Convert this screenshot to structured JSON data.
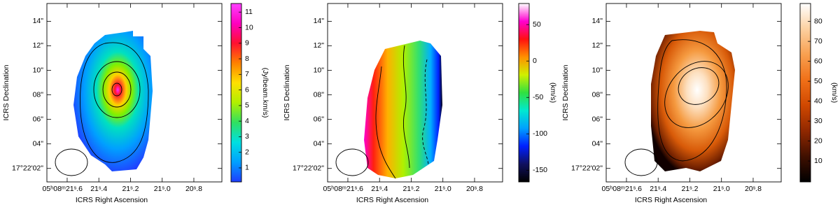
{
  "chart_data": [
    {
      "type": "image",
      "xlabel": "ICRS Right Ascension",
      "ylabel": "ICRS Declination",
      "xlim": [
        21.728,
        20.623
      ],
      "xticks": [
        {
          "value": 21.6,
          "label": "05ʰ08ᵐ21ˢ.6"
        },
        {
          "value": 21.4,
          "label": "21ˢ.4"
        },
        {
          "value": 21.2,
          "label": "21ˢ.2"
        },
        {
          "value": 21.0,
          "label": "21ˢ.0"
        },
        {
          "value": 20.8,
          "label": "20ˢ.8"
        }
      ],
      "ylim": [
        0.9,
        15.45
      ],
      "yticks": [
        {
          "value": 2,
          "label": "17°22'02\""
        },
        {
          "value": 4,
          "label": "04\""
        },
        {
          "value": 6,
          "label": "06\""
        },
        {
          "value": 8,
          "label": "08\""
        },
        {
          "value": 10,
          "label": "10\""
        },
        {
          "value": 12,
          "label": "12\""
        },
        {
          "value": 14,
          "label": "14\""
        }
      ],
      "colorbar": {
        "label": "(Jy/beam.km/s)",
        "lim": [
          0.1,
          11.55
        ],
        "ticks": [
          1,
          2,
          3,
          4,
          5,
          6,
          7,
          8,
          9,
          10,
          11
        ],
        "colors": [
          "#1e3cff",
          "#00a0ff",
          "#00e0e0",
          "#30e060",
          "#b0f000",
          "#ffe000",
          "#ff8000",
          "#ff1030",
          "#ff00c0",
          "#ff40ff"
        ]
      }
    },
    {
      "type": "image",
      "xlabel": "ICRS Right Ascension",
      "ylabel": "ICRS Declination",
      "xlim": [
        21.728,
        20.623
      ],
      "xticks": [
        {
          "value": 21.6,
          "label": "05ʰ08ᵐ21ˢ.6"
        },
        {
          "value": 21.4,
          "label": "21ˢ.4"
        },
        {
          "value": 21.2,
          "label": "21ˢ.2"
        },
        {
          "value": 21.0,
          "label": "21ˢ.0"
        },
        {
          "value": 20.8,
          "label": "20ˢ.8"
        }
      ],
      "ylim": [
        0.9,
        15.45
      ],
      "yticks": [
        {
          "value": 2,
          "label": "17°22'02\""
        },
        {
          "value": 4,
          "label": "04\""
        },
        {
          "value": 6,
          "label": "06\""
        },
        {
          "value": 8,
          "label": "08\""
        },
        {
          "value": 10,
          "label": "10\""
        },
        {
          "value": 12,
          "label": "12\""
        },
        {
          "value": 14,
          "label": "14\""
        }
      ],
      "colorbar": {
        "label": "(km/s)",
        "lim": [
          -166,
          79
        ],
        "ticks": [
          -150,
          -100,
          -50,
          0,
          50
        ],
        "colors": [
          "#000000",
          "#101060",
          "#0020ff",
          "#00a0ff",
          "#00e8d0",
          "#30e040",
          "#d0f000",
          "#ff9000",
          "#ff1010",
          "#ff00d0",
          "#ffffff"
        ]
      }
    },
    {
      "type": "image",
      "xlabel": "ICRS Right Ascension",
      "ylabel": "ICRS Declination",
      "xlim": [
        21.728,
        20.623
      ],
      "xticks": [
        {
          "value": 21.6,
          "label": "05ʰ08ᵐ21ˢ.6"
        },
        {
          "value": 21.4,
          "label": "21ˢ.4"
        },
        {
          "value": 21.2,
          "label": "21ˢ.2"
        },
        {
          "value": 21.0,
          "label": "21ˢ.0"
        },
        {
          "value": 20.8,
          "label": "20ˢ.8"
        }
      ],
      "ylim": [
        0.9,
        15.45
      ],
      "yticks": [
        {
          "value": 2,
          "label": "17°22'02\""
        },
        {
          "value": 4,
          "label": "04\""
        },
        {
          "value": 6,
          "label": "06\""
        },
        {
          "value": 8,
          "label": "08\""
        },
        {
          "value": 10,
          "label": "10\""
        },
        {
          "value": 12,
          "label": "12\""
        },
        {
          "value": 14,
          "label": "14\""
        }
      ],
      "colorbar": {
        "label": "(km/s)",
        "lim": [
          -0.5,
          89
        ],
        "ticks": [
          10,
          20,
          30,
          40,
          50,
          60,
          70,
          80
        ],
        "colors": [
          "#000000",
          "#401000",
          "#902800",
          "#d04800",
          "#f07018",
          "#f8a050",
          "#fcd0a0",
          "#ffffff"
        ]
      }
    }
  ]
}
